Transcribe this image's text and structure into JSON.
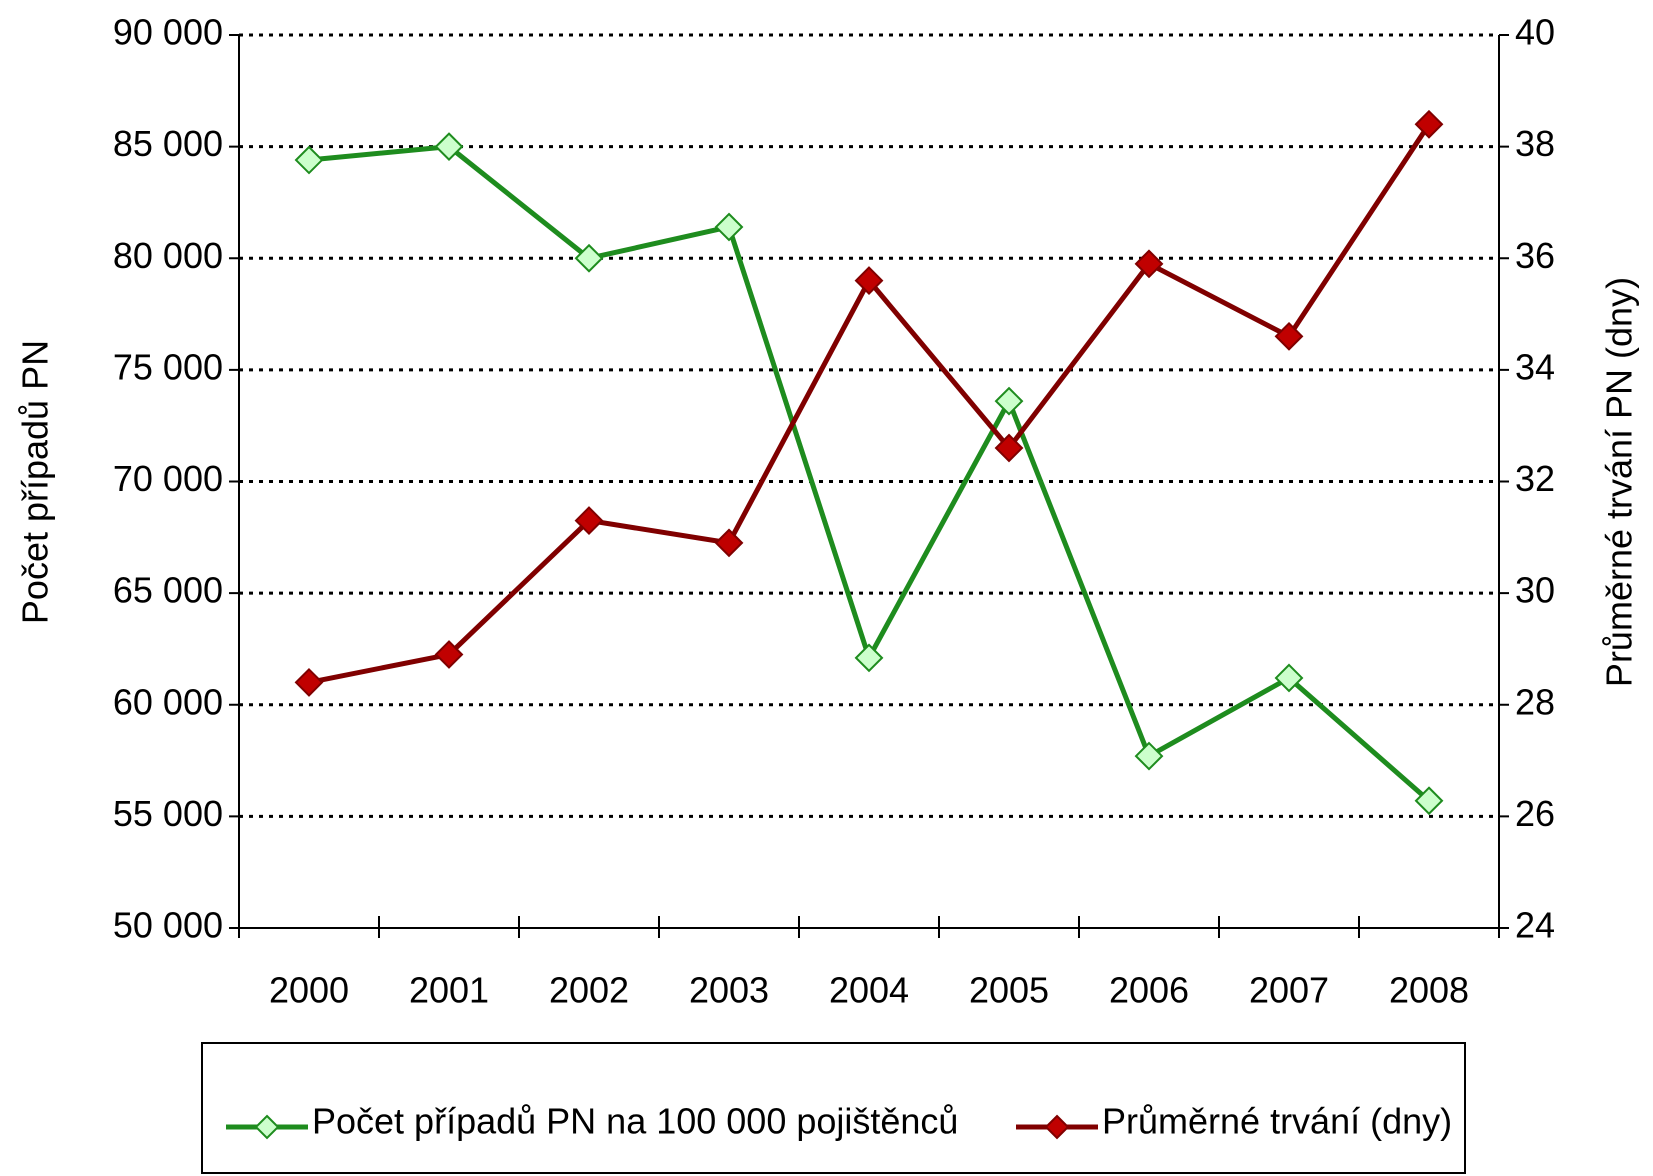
{
  "chart_data": {
    "type": "line",
    "y_label": "Počet případů PN",
    "y2_label": "Průměrné trvání PN (dny)",
    "categories": [
      "2000",
      "2001",
      "2002",
      "2003",
      "2004",
      "2005",
      "2006",
      "2007",
      "2008"
    ],
    "series": [
      {
        "name": "Počet případů PN na 100 000 pojištěnců",
        "color": "#1e8c1e",
        "marker_fill": "#ccffcc",
        "values": [
          84400,
          85000,
          80000,
          81400,
          62100,
          73600,
          57700,
          61200,
          55700
        ]
      },
      {
        "name": "Průměrné trvání (dny)",
        "color": "#800000",
        "marker_fill": "#c00000",
        "axis": "y2",
        "values": [
          28.4,
          28.9,
          31.3,
          30.9,
          35.6,
          32.6,
          35.9,
          34.6,
          38.4
        ]
      }
    ],
    "ylim": [
      50000,
      90000
    ],
    "yticks": [
      {
        "value": 50000,
        "label": "50 000"
      },
      {
        "value": 55000,
        "label": "55 000"
      },
      {
        "value": 60000,
        "label": "60 000"
      },
      {
        "value": 65000,
        "label": "65 000"
      },
      {
        "value": 70000,
        "label": "70 000"
      },
      {
        "value": 75000,
        "label": "75 000"
      },
      {
        "value": 80000,
        "label": "80 000"
      },
      {
        "value": 85000,
        "label": "85 000"
      },
      {
        "value": 90000,
        "label": "90 000"
      }
    ],
    "y2lim": [
      24,
      40
    ],
    "y2ticks": [
      24,
      26,
      28,
      30,
      32,
      34,
      36,
      38,
      40
    ],
    "grid": true,
    "legend": "bottom"
  }
}
